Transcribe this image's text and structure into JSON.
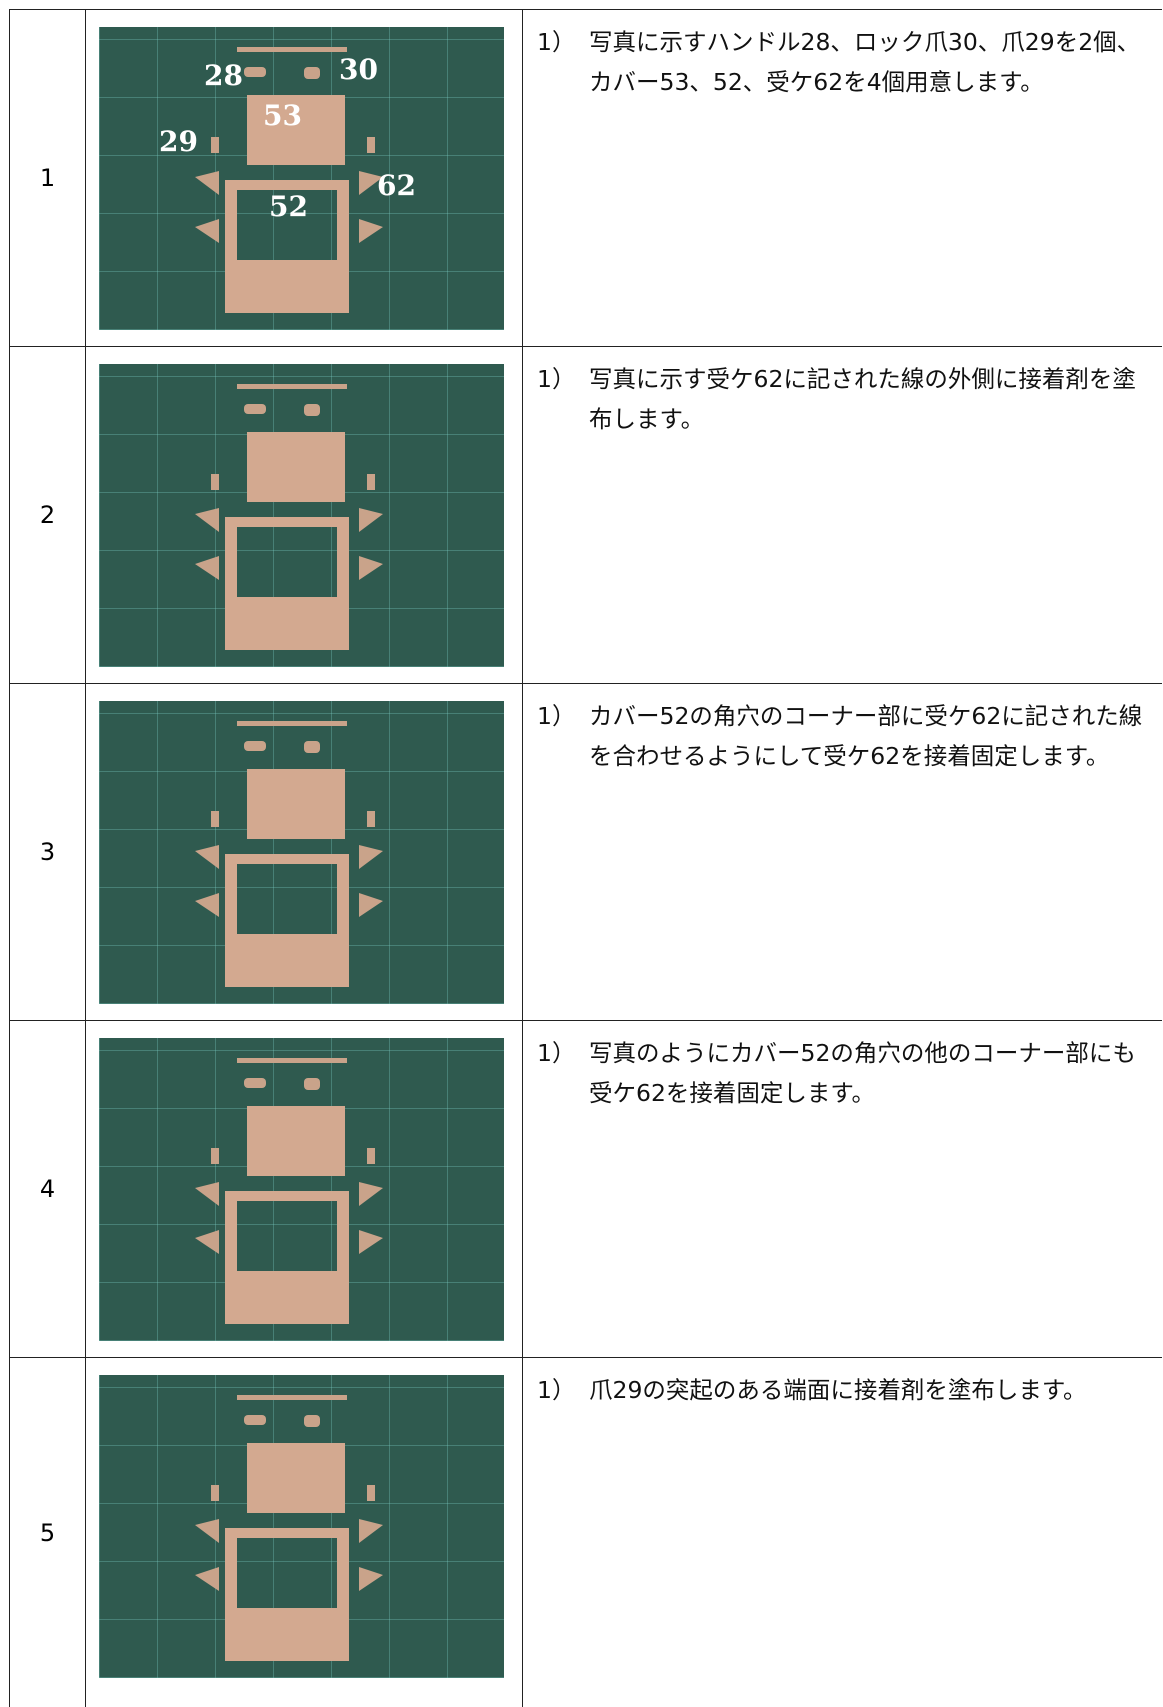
{
  "rows": [
    {
      "step": "1",
      "photo_labels": [
        "28",
        "30",
        "53",
        "29",
        "62",
        "52"
      ],
      "items": [
        {
          "marker": "1）",
          "text": "写真に示すハンドル28、ロック爪30、爪29を2個、カバー53、52、受ケ62を4個用意します。"
        }
      ]
    },
    {
      "step": "2",
      "items": [
        {
          "marker": "1）",
          "text": "写真に示す受ケ62に記された線の外側に接着剤を塗布します。"
        }
      ]
    },
    {
      "step": "3",
      "items": [
        {
          "marker": "1）",
          "text": "カバー52の角穴のコーナー部に受ケ62に記された線を合わせるようにして受ケ62を接着固定します。"
        }
      ]
    },
    {
      "step": "4",
      "items": [
        {
          "marker": "1）",
          "text": "写真のようにカバー52の角穴の他のコーナー部にも受ケ62を接着固定します。"
        }
      ]
    },
    {
      "step": "5",
      "items": [
        {
          "marker": "1）",
          "text": "爪29の突起のある端面に接着剤を塗布します。"
        }
      ]
    }
  ]
}
